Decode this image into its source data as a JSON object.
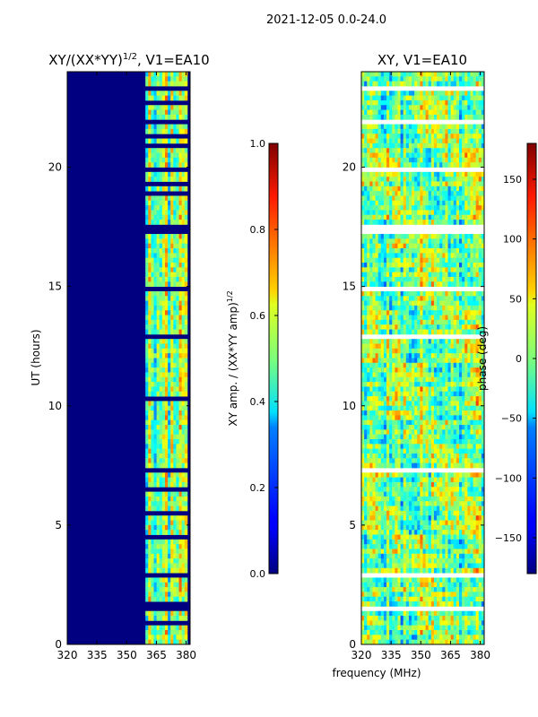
{
  "suptitle": "2021-12-05 0.0-24.0",
  "shared_xlabel": "frequency (MHz)",
  "chart_data": [
    {
      "type": "heatmap",
      "title": "XY/(XX*YY)",
      "title_superscript": "1/2",
      "title_suffix": ", V1=EA10",
      "xlabel": "",
      "ylabel": "UT (hours)",
      "xlim": [
        320,
        382
      ],
      "ylim": [
        0,
        24
      ],
      "xticks": [
        320,
        335,
        350,
        365,
        380
      ],
      "yticks": [
        0,
        5,
        10,
        15,
        20
      ],
      "colormap": "jet",
      "background_level": 0.0,
      "active_band_mhz": [
        360,
        380
      ],
      "colorbar": {
        "label": "XY amp. / (XX*YY amp)",
        "label_superscript": "1/2",
        "range": [
          0.0,
          1.0
        ],
        "ticks": [
          0.0,
          0.2,
          0.4,
          0.6,
          0.8,
          1.0
        ],
        "tick_labels": [
          "0.0",
          "0.2",
          "0.4",
          "0.6",
          "0.8",
          "1.0"
        ]
      },
      "flagged_time_ranges_hours": [
        [
          23.2,
          23.35
        ],
        [
          22.6,
          22.75
        ],
        [
          21.9,
          22.0
        ],
        [
          21.3,
          21.4
        ],
        [
          20.8,
          20.9
        ],
        [
          19.9,
          20.0
        ],
        [
          19.3,
          19.4
        ],
        [
          18.9,
          19.0
        ],
        [
          17.3,
          17.5
        ],
        [
          16.95,
          17.05
        ],
        [
          15.55,
          15.65
        ],
        [
          14.8,
          14.9
        ],
        [
          13.35,
          13.45
        ],
        [
          12.85,
          12.95
        ],
        [
          11.35,
          11.45
        ],
        [
          10.3,
          10.4
        ],
        [
          9.55,
          9.65
        ],
        [
          8.95,
          9.05
        ],
        [
          7.1,
          7.45
        ],
        [
          6.45,
          6.55
        ],
        [
          5.45,
          5.55
        ],
        [
          4.45,
          4.55
        ],
        [
          3.35,
          3.45
        ],
        [
          2.85,
          3.0
        ],
        [
          2.65,
          2.7
        ],
        [
          1.5,
          1.7
        ],
        [
          0.85,
          0.95
        ],
        [
          0.35,
          0.45
        ]
      ]
    },
    {
      "type": "heatmap",
      "title": "XY, V1=EA10",
      "xlabel": "frequency (MHz)",
      "ylabel": "",
      "xlim": [
        320,
        382
      ],
      "ylim": [
        0,
        24
      ],
      "xticks": [
        320,
        335,
        350,
        365,
        380
      ],
      "yticks": [
        0,
        5,
        10,
        15,
        20
      ],
      "colormap": "jet",
      "colorbar": {
        "label": "phase (deg)",
        "range": [
          -180,
          180
        ],
        "ticks": [
          -150,
          -100,
          -50,
          0,
          50,
          100,
          150
        ],
        "tick_labels": [
          "−150",
          "−100",
          "−50",
          "0",
          "50",
          "100",
          "150"
        ]
      },
      "flagged_time_ranges_hours": [
        [
          23.2,
          23.35
        ],
        [
          21.9,
          22.0
        ],
        [
          19.9,
          20.0
        ],
        [
          17.3,
          17.5
        ],
        [
          15.55,
          15.65
        ],
        [
          14.8,
          14.9
        ],
        [
          12.85,
          12.95
        ],
        [
          11.35,
          11.45
        ],
        [
          7.1,
          7.45
        ],
        [
          2.85,
          3.0
        ],
        [
          1.5,
          1.6
        ]
      ]
    }
  ]
}
